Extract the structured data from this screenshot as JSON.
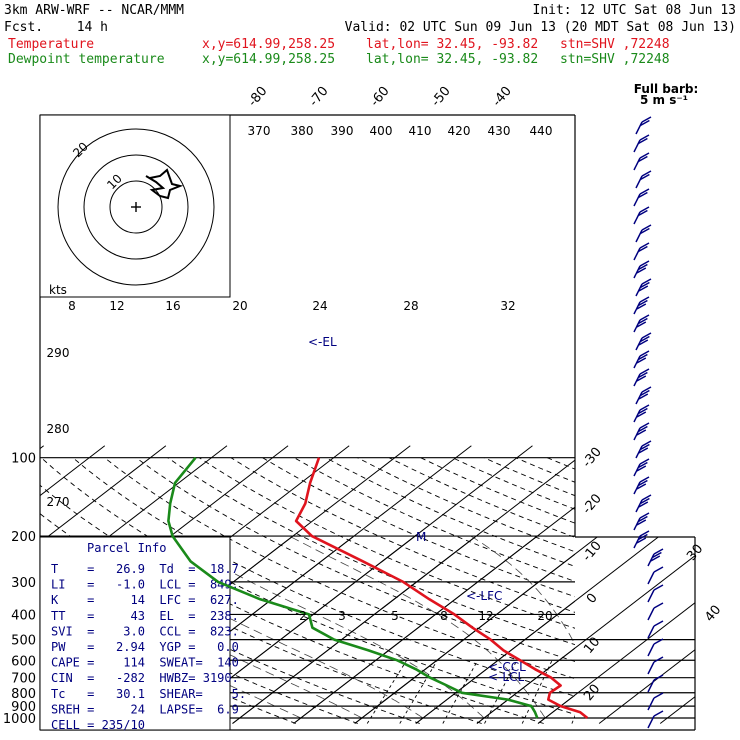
{
  "header": {
    "model": "3km ARW-WRF -- NCAR/MMM",
    "init": "Init: 12 UTC Sat 08 Jun 13",
    "fcst_label": "Fcst.",
    "fcst_value": "14 h",
    "valid": "Valid: 02 UTC Sun 09 Jun 13 (20 MDT Sat 08 Jun 13)",
    "temp_label": "Temperature",
    "dew_label": "Dewpoint temperature",
    "xy": "x,y=614.99,258.25",
    "latlon": "lat,lon= 32.45, -93.82",
    "stn": "stn=SHV ,72248"
  },
  "barb_legend": {
    "line1": "Full barb:",
    "line2": "5 m s⁻¹"
  },
  "hodo_label": "kts",
  "parcel": {
    "title": "Parcel Info",
    "rows": [
      "T    =   26.9  Td  =  18.7",
      "LI   =   -1.0  LCL =  849.",
      "K    =     14  LFC =  627.",
      "TT   =     43  EL  =  238.",
      "SVI  =    3.0  CCL =  823.",
      "PW   =   2.94  YGP =   0.0",
      "CAPE =    114  SWEAT=  140",
      "CIN  =   -282  HWBZ= 3190.",
      "Tc   =   30.1  SHEAR=    5.",
      "SREH =     24  LAPSE=  6.9",
      "CELL = 235/10"
    ]
  },
  "level_labels": {
    "el": "<-EL",
    "lfc": "<-LFC",
    "ccl": "<-CCL",
    "lcl": "<-LCL",
    "m": "M"
  },
  "colors": {
    "temperature": "#e0141e",
    "dewpoint": "#1a8a1a",
    "barbs": "#000080",
    "axes": "#000000"
  },
  "chart_data": {
    "type": "line",
    "xlabel": "",
    "ylabel": "",
    "y_scale": "log-pressure",
    "ylim": [
      1000,
      100
    ],
    "pressure_ticks": [
      100,
      200,
      300,
      400,
      500,
      600,
      700,
      800,
      900,
      1000
    ],
    "isotherm_labels_top": [
      -80,
      -70,
      -60,
      -50,
      -40
    ],
    "isotherm_labels_right": [
      -30,
      -20,
      -10,
      0,
      10,
      20,
      30,
      40
    ],
    "theta_labels_top": [
      370,
      380,
      390,
      400,
      410,
      420,
      430,
      440
    ],
    "theta_labels_left": [
      290,
      280,
      270
    ],
    "mixing_ratio_upper": [
      8,
      12,
      16,
      20,
      24,
      28,
      32
    ],
    "mixing_ratio_lower": [
      2,
      3,
      5,
      8,
      12,
      20
    ],
    "series": [
      {
        "name": "Temperature",
        "points": [
          [
            1000,
            26.9
          ],
          [
            950,
            24.5
          ],
          [
            900,
            20.0
          ],
          [
            850,
            16.6
          ],
          [
            800,
            15.4
          ],
          [
            750,
            15.6
          ],
          [
            700,
            12.4
          ],
          [
            650,
            8.0
          ],
          [
            600,
            3.6
          ],
          [
            550,
            -1.2
          ],
          [
            500,
            -5.6
          ],
          [
            450,
            -11.1
          ],
          [
            400,
            -16.9
          ],
          [
            350,
            -24.2
          ],
          [
            300,
            -32.2
          ],
          [
            250,
            -43.2
          ],
          [
            200,
            -56.9
          ],
          [
            175,
            -62.7
          ],
          [
            150,
            -64.9
          ],
          [
            125,
            -68.5
          ],
          [
            100,
            -72.4
          ]
        ]
      },
      {
        "name": "Dewpoint temperature",
        "points": [
          [
            1000,
            18.7
          ],
          [
            950,
            17.1
          ],
          [
            900,
            15.2
          ],
          [
            850,
            10.0
          ],
          [
            800,
            1.0
          ],
          [
            750,
            -3.0
          ],
          [
            700,
            -7.4
          ],
          [
            650,
            -11.5
          ],
          [
            600,
            -16.5
          ],
          [
            550,
            -23.3
          ],
          [
            500,
            -31.2
          ],
          [
            450,
            -37.3
          ],
          [
            400,
            -40.7
          ],
          [
            350,
            -51.9
          ],
          [
            300,
            -62.5
          ],
          [
            250,
            -71.4
          ],
          [
            200,
            -79.7
          ],
          [
            175,
            -83.6
          ],
          [
            150,
            -87.0
          ],
          [
            125,
            -90.6
          ],
          [
            100,
            -92.6
          ]
        ]
      }
    ]
  }
}
